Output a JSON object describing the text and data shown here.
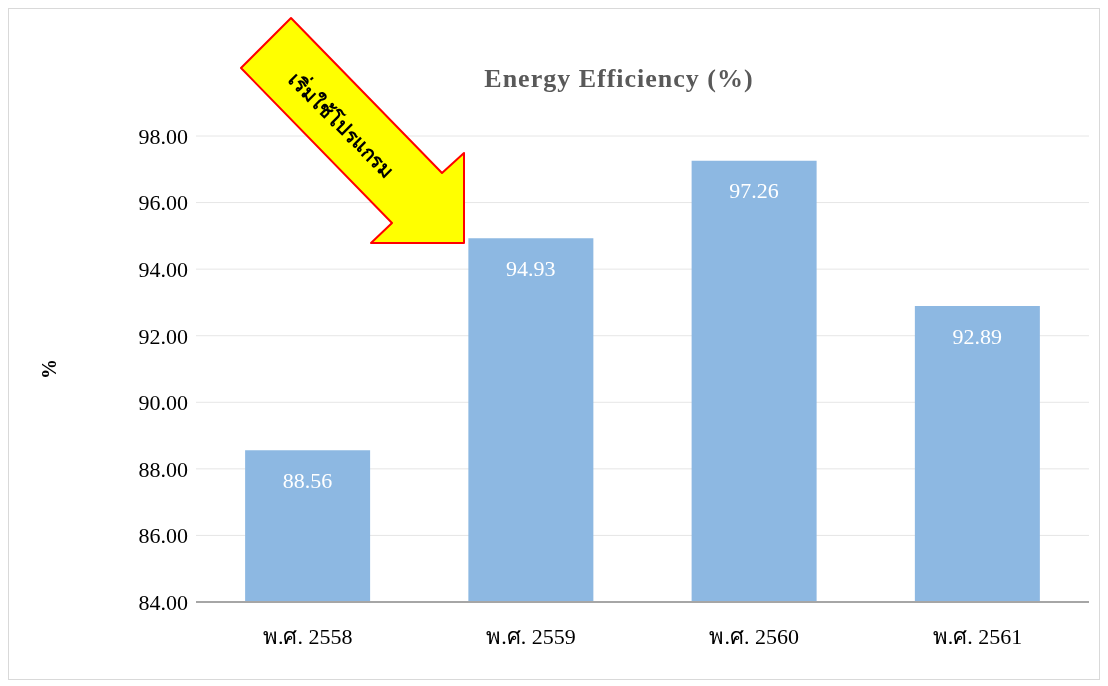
{
  "chart_data": {
    "type": "bar",
    "title": "Energy Efficiency (%)",
    "ylabel": "%",
    "categories": [
      "พ.ศ. 2558",
      "พ.ศ. 2559",
      "พ.ศ. 2560",
      "พ.ศ. 2561"
    ],
    "values": [
      88.56,
      94.93,
      97.26,
      92.89
    ],
    "color": "#8db8e2",
    "ylim": [
      84,
      98
    ],
    "yticks": [
      {
        "value": 84,
        "label": "84.00"
      },
      {
        "value": 86,
        "label": "86.00"
      },
      {
        "value": 88,
        "label": "88.00"
      },
      {
        "value": 90,
        "label": "90.00"
      },
      {
        "value": 92,
        "label": "92.00"
      },
      {
        "value": 94,
        "label": "94.00"
      },
      {
        "value": 96,
        "label": "96.00"
      },
      {
        "value": 98,
        "label": "98.00"
      }
    ],
    "grid": "y",
    "data_labels": true,
    "legend": false,
    "annotations": [
      "เริ่มใช้โปรแกรม"
    ]
  }
}
